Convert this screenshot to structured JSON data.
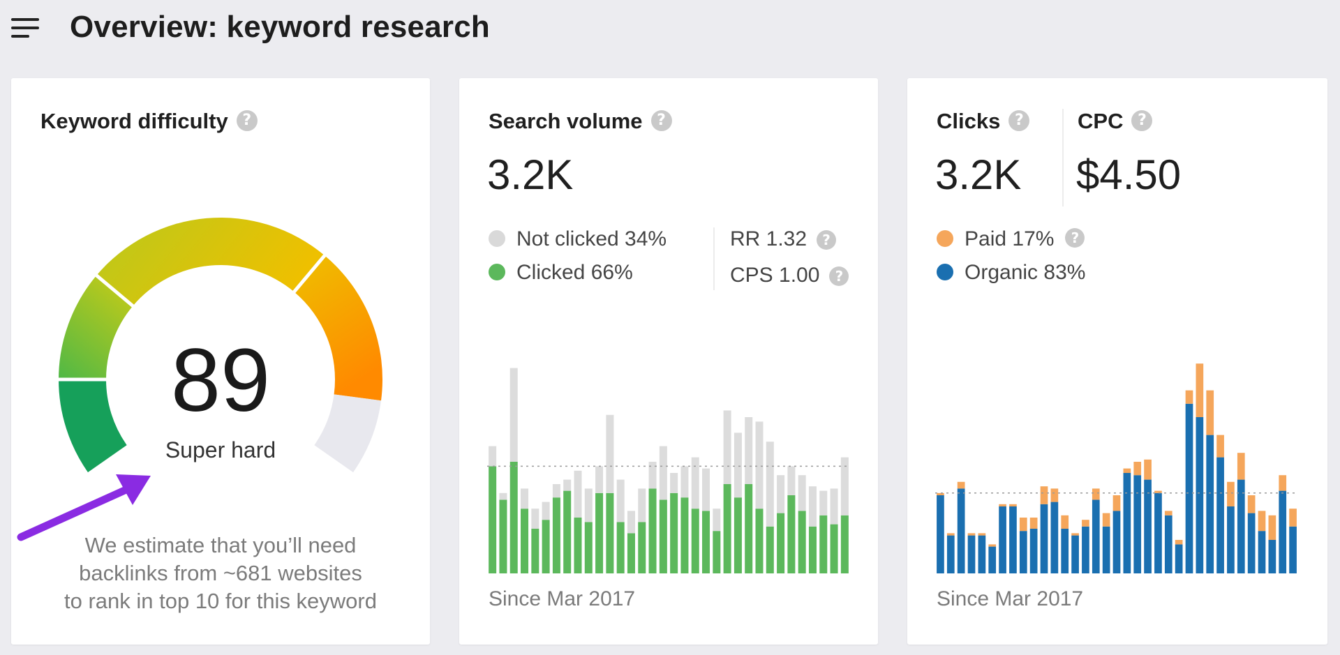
{
  "header": {
    "title": "Overview: keyword research",
    "menu_icon": "hamburger-menu-icon"
  },
  "difficulty": {
    "title": "Keyword difficulty",
    "help": "?",
    "value": 89,
    "value_text": "89",
    "label": "Super hard",
    "estimate_lines": [
      "We estimate that you’ll need",
      "backlinks from ~681 websites",
      "to rank in top 10 for this keyword"
    ],
    "colors": {
      "green_dark": "#16a05a",
      "green": "#4fb846",
      "yellow_green": "#b9c91c",
      "yellow": "#eec000",
      "orange": "#ff8a00",
      "empty": "#e8e8ee",
      "arrow": "#8a2be2"
    }
  },
  "search_volume": {
    "title": "Search volume",
    "help": "?",
    "value": "3.2K",
    "legend": [
      {
        "label": "Not clicked 34%",
        "color": "#d9d9d9"
      },
      {
        "label": "Clicked 66%",
        "color": "#5cb85c"
      }
    ],
    "rr": "RR 1.32",
    "cps": "CPS 1.00",
    "since": "Since Mar 2017"
  },
  "clicks": {
    "title": "Clicks",
    "value": "3.2K",
    "cpc_title": "CPC",
    "cpc_value": "$4.50",
    "help": "?",
    "legend": [
      {
        "label": "Paid 17%",
        "color": "#f5a65b"
      },
      {
        "label": "Organic 83%",
        "color": "#1a6fb0"
      }
    ],
    "since": "Since Mar 2017"
  },
  "chart_data": [
    {
      "type": "bar",
      "stacked": true,
      "series": [
        {
          "name": "Clicked",
          "color": "#5cb85c",
          "values": [
            48,
            33,
            50,
            29,
            20,
            24,
            34,
            37,
            25,
            23,
            36,
            36,
            23,
            18,
            23,
            38,
            33,
            36,
            34,
            29,
            28,
            19,
            40,
            34,
            40,
            29,
            21,
            27,
            35,
            28,
            21,
            26,
            22,
            26
          ]
        },
        {
          "name": "Not clicked",
          "color": "#dcdcdc",
          "values": [
            9,
            3,
            42,
            9,
            9,
            8,
            6,
            5,
            21,
            15,
            12,
            35,
            19,
            10,
            15,
            12,
            24,
            9,
            14,
            23,
            19,
            10,
            33,
            29,
            30,
            39,
            38,
            17,
            13,
            16,
            18,
            11,
            16,
            26
          ]
        }
      ],
      "avg_line": 48,
      "grid": false
    },
    {
      "type": "bar",
      "stacked": true,
      "series": [
        {
          "name": "Organic",
          "color": "#1a6fb0",
          "values": [
            35,
            17,
            38,
            17,
            17,
            12,
            30,
            30,
            19,
            20,
            31,
            32,
            20,
            17,
            21,
            33,
            21,
            28,
            45,
            44,
            42,
            36,
            26,
            13,
            76,
            70,
            62,
            52,
            30,
            42,
            27,
            19,
            15,
            37,
            21
          ]
        },
        {
          "name": "Paid",
          "color": "#f5a65b",
          "values": [
            1,
            1,
            3,
            1,
            1,
            1,
            1,
            1,
            6,
            5,
            8,
            6,
            6,
            1,
            3,
            5,
            6,
            7,
            2,
            6,
            9,
            1,
            2,
            2,
            6,
            24,
            20,
            10,
            11,
            12,
            8,
            9,
            11,
            7,
            8
          ]
        }
      ],
      "avg_line": 36,
      "grid": false
    }
  ]
}
